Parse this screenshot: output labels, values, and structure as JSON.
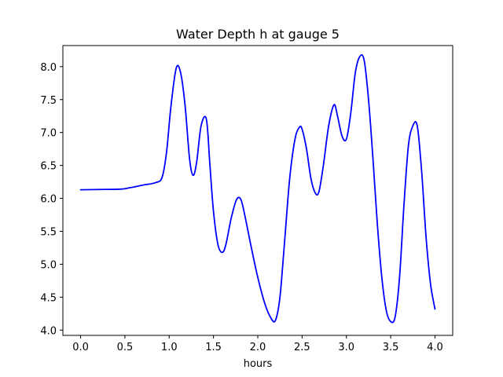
{
  "chart_data": {
    "type": "line",
    "title": "Water Depth h at gauge 5",
    "xlabel": "hours",
    "ylabel": "",
    "xlim": [
      -0.2,
      4.2
    ],
    "ylim": [
      3.92,
      8.32
    ],
    "x_ticks": [
      0.0,
      0.5,
      1.0,
      1.5,
      2.0,
      2.5,
      3.0,
      3.5,
      4.0
    ],
    "x_tick_labels": [
      "0.0",
      "0.5",
      "1.0",
      "1.5",
      "2.0",
      "2.5",
      "3.0",
      "3.5",
      "4.0"
    ],
    "y_ticks": [
      4.0,
      4.5,
      5.0,
      5.5,
      6.0,
      6.5,
      7.0,
      7.5,
      8.0
    ],
    "y_tick_labels": [
      "4.0",
      "4.5",
      "5.0",
      "5.5",
      "6.0",
      "6.5",
      "7.0",
      "7.5",
      "8.0"
    ],
    "grid": false,
    "series": [
      {
        "color": "#0000ff",
        "x": [
          0.0,
          0.2,
          0.45,
          0.55,
          0.7,
          0.85,
          0.92,
          0.97,
          1.02,
          1.08,
          1.13,
          1.18,
          1.23,
          1.27,
          1.31,
          1.36,
          1.42,
          1.46,
          1.5,
          1.55,
          1.6,
          1.64,
          1.7,
          1.76,
          1.81,
          1.86,
          1.92,
          2.0,
          2.08,
          2.15,
          2.2,
          2.25,
          2.3,
          2.36,
          2.42,
          2.47,
          2.5,
          2.55,
          2.6,
          2.65,
          2.69,
          2.74,
          2.8,
          2.86,
          2.9,
          2.95,
          3.0,
          3.05,
          3.1,
          3.15,
          3.2,
          3.25,
          3.3,
          3.35,
          3.4,
          3.45,
          3.5,
          3.55,
          3.6,
          3.65,
          3.7,
          3.75,
          3.8,
          3.85,
          3.9,
          3.95,
          4.0
        ],
        "y": [
          6.13,
          6.135,
          6.14,
          6.16,
          6.2,
          6.24,
          6.32,
          6.7,
          7.4,
          7.98,
          7.9,
          7.4,
          6.6,
          6.35,
          6.55,
          7.1,
          7.2,
          6.5,
          5.8,
          5.3,
          5.18,
          5.3,
          5.7,
          5.98,
          5.98,
          5.7,
          5.3,
          4.8,
          4.4,
          4.18,
          4.15,
          4.5,
          5.3,
          6.3,
          6.9,
          7.08,
          7.05,
          6.75,
          6.3,
          6.08,
          6.1,
          6.5,
          7.1,
          7.42,
          7.25,
          6.95,
          6.9,
          7.3,
          7.9,
          8.15,
          8.1,
          7.5,
          6.6,
          5.6,
          4.8,
          4.3,
          4.13,
          4.2,
          4.8,
          5.9,
          6.8,
          7.1,
          7.1,
          6.4,
          5.4,
          4.7,
          4.32
        ]
      }
    ]
  }
}
